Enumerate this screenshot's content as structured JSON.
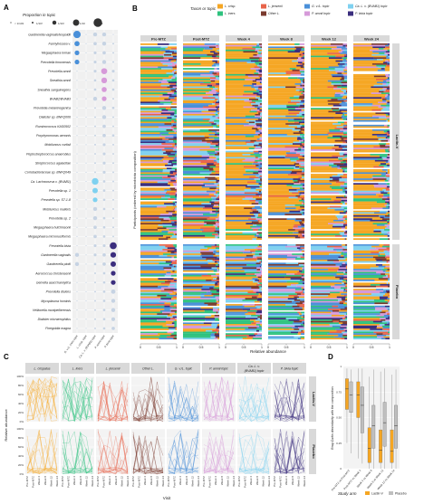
{
  "panels": {
    "a": "A",
    "b": "B",
    "c": "C",
    "d": "D"
  },
  "chart_data": [
    {
      "panel": "A",
      "type": "dot",
      "size_legend": {
        "title": "Proportion in topic",
        "entries": [
          {
            "label": "< 1/103",
            "value": 0.0005
          },
          {
            "label": "1/10³",
            "value": 0.001
          },
          {
            "label": "1/10²",
            "value": 0.01
          },
          {
            "label": "1/10",
            "value": 0.1
          },
          {
            "label": "1",
            "value": 1
          }
        ]
      },
      "topics": [
        "G. v./L. iners topic",
        "L. crisp. topic",
        "Ca. L. v. (BVAB1) topic",
        "P. amnii topic",
        "P. bivia topic"
      ],
      "taxa": [
        "Gardnerella vaginalis/leopoldii",
        "Fannyhessea v.",
        "Megasphaera lornae",
        "Prevotella timonensis",
        "Prevotella amnii",
        "Sneathia amnii",
        "Sneathia sanguinegens",
        "BVAB2/BVAB3",
        "Prevotella melaninogenica",
        "Dialister sp. BNFQ006",
        "Ruminococcus KAS0502",
        "Porphyromonas uenonis",
        "Mobiluncus curtisii",
        "Peptostreptococcus anaerobius",
        "Streptococcus agalactiae",
        "Coriobacteriaceae sp. BNFQ049",
        "Ca. Lachnocurva v. (BVAB1)",
        "Prevotella sp. 1",
        "Prevotella sp. S7-1-8",
        "Mobiluncus mulieris",
        "Prevotella sp. 2",
        "Megasphaera hutchinsonii",
        "Megasphaera micronuciformis",
        "Prevotella bivia",
        "Gardnerella vaginalis",
        "Gardnerella piotii",
        "Aerococcus christensenii",
        "Gemella asaccharolytica",
        "Prevotella disiens",
        "Mycoplasma hominis",
        "Veillonella montpellierensis",
        "Dialister micraerophilus",
        "Finegoldia magna"
      ],
      "values": [
        [
          0.3,
          0.0005,
          0.01,
          0.01,
          0.0005
        ],
        [
          0.03,
          0.0005,
          0.005,
          0.01,
          0.001
        ],
        [
          0.02,
          0.0005,
          0.003,
          0.005,
          0.001
        ],
        [
          0.02,
          0.0005,
          0.003,
          0.01,
          0.001
        ],
        [
          0.0005,
          0.0005,
          0.003,
          0.08,
          0.003
        ],
        [
          0.0005,
          0.0005,
          0.002,
          0.06,
          0.002
        ],
        [
          0.0005,
          0.0005,
          0.002,
          0.03,
          0.002
        ],
        [
          0.0005,
          0.0005,
          0.01,
          0.02,
          0.001
        ],
        [
          0.0005,
          0.0005,
          0.001,
          0.01,
          0.002
        ],
        [
          0.0005,
          0.0005,
          0.001,
          0.01,
          0.001
        ],
        [
          0.0005,
          0.0005,
          0.001,
          0.005,
          0.001
        ],
        [
          0.0005,
          0.0005,
          0.001,
          0.005,
          0.002
        ],
        [
          0.0005,
          0.0005,
          0.001,
          0.003,
          0.001
        ],
        [
          0.0005,
          0.0005,
          0.001,
          0.003,
          0.001
        ],
        [
          0.0005,
          0.0005,
          0.001,
          0.003,
          0.001
        ],
        [
          0.0005,
          0.0005,
          0.001,
          0.003,
          0.001
        ],
        [
          0.0005,
          0.0005,
          0.15,
          0.002,
          0.001
        ],
        [
          0.0005,
          0.0005,
          0.04,
          0.002,
          0.001
        ],
        [
          0.0005,
          0.0005,
          0.02,
          0.002,
          0.001
        ],
        [
          0.0005,
          0.0005,
          0.01,
          0.002,
          0.001
        ],
        [
          0.0005,
          0.0005,
          0.01,
          0.002,
          0.001
        ],
        [
          0.0005,
          0.0005,
          0.005,
          0.002,
          0.001
        ],
        [
          0.0005,
          0.0005,
          0.005,
          0.002,
          0.001
        ],
        [
          0.0005,
          0.0005,
          0.003,
          0.003,
          0.2
        ],
        [
          0.01,
          0.0005,
          0.003,
          0.005,
          0.05
        ],
        [
          0.01,
          0.0005,
          0.002,
          0.005,
          0.04
        ],
        [
          0.0005,
          0.0005,
          0.001,
          0.002,
          0.02
        ],
        [
          0.0005,
          0.0005,
          0.001,
          0.002,
          0.02
        ],
        [
          0.0005,
          0.0005,
          0.001,
          0.002,
          0.015
        ],
        [
          0.0005,
          0.0005,
          0.001,
          0.002,
          0.01
        ],
        [
          0.0005,
          0.0005,
          0.001,
          0.002,
          0.01
        ],
        [
          0.0005,
          0.0005,
          0.001,
          0.002,
          0.008
        ],
        [
          0.0005,
          0.0005,
          0.001,
          0.002,
          0.005
        ]
      ],
      "colors": {
        "neutral": "#c6d3e3",
        "topics": [
          "#4a90d9",
          "#f5a623",
          "#7fd1f0",
          "#d69ad9",
          "#3b2e7e"
        ]
      }
    },
    {
      "panel": "B",
      "type": "stacked_bar",
      "legend_title": "Taxon or topic",
      "legend": [
        {
          "name": "L. crisp.",
          "color": "#f5a623"
        },
        {
          "name": "L. jensenii",
          "color": "#e8644a"
        },
        {
          "name": "G. v./L. topic",
          "color": "#4a90d9"
        },
        {
          "name": "Ca. L. v. (BVAB1) topic",
          "color": "#7fd1f0"
        },
        {
          "name": "L. iners",
          "color": "#2ec27e"
        },
        {
          "name": "Other L.",
          "color": "#7a3a2e"
        },
        {
          "name": "P. amnii topic",
          "color": "#d69ad9"
        },
        {
          "name": "P. bivia topic",
          "color": "#3b2e7e"
        }
      ],
      "visits": [
        "Pre-MTZ",
        "Post-MTZ",
        "Week 4",
        "Week 8",
        "Week 12",
        "Week 24"
      ],
      "arms": [
        "Lactin-V",
        "Placebo"
      ],
      "ylabel": "Participants (ordered by microbiota composition)",
      "xlabel": "Relative abundance",
      "x_ticks": [
        "0",
        "0.5",
        "1"
      ],
      "xlim": [
        0,
        1
      ]
    },
    {
      "panel": "C",
      "type": "line",
      "components": [
        "L. crispatus",
        "L. iners",
        "L. jensenii",
        "Other L.",
        "G. v./L. topic",
        "P. amnii topic",
        "Ca. L. v. (BVAB1) topic",
        "P. bivia topic"
      ],
      "colors": [
        "#f5a623",
        "#2ec27e",
        "#e8644a",
        "#7a3a2e",
        "#4a90d9",
        "#d69ad9",
        "#7fd1f0",
        "#3b2e7e"
      ],
      "arms": [
        "Lactin-V",
        "Placebo"
      ],
      "x": [
        "Pre-MTZ",
        "Post-MTZ",
        "Week 4",
        "Week 8",
        "Week 12",
        "Week 24"
      ],
      "ylabel": "Relative abundance",
      "xlabel": "Visit",
      "y_ticks": [
        "0%",
        "20%",
        "40%",
        "60%",
        "80%",
        "100%"
      ],
      "ylim": [
        0,
        100
      ]
    },
    {
      "panel": "D",
      "type": "box",
      "ylabel": "Bray-Curtis dissimilarity with the composition",
      "xlabel": "",
      "categories": [
        "Pre-MTZ vs Post-MTZ",
        "Post-MTZ vs Week 4",
        "Week 4 vs Week 8",
        "Week 8 vs Week 12",
        "Week 12 vs Week 24"
      ],
      "series": [
        {
          "name": "Lactin-V",
          "color": "#f5a623",
          "boxes": [
            [
              0.25,
              0.58,
              0.78,
              0.88,
              0.98
            ],
            [
              0.1,
              0.5,
              0.72,
              0.85,
              0.98
            ],
            [
              0.0,
              0.06,
              0.2,
              0.4,
              0.9
            ],
            [
              0.0,
              0.06,
              0.18,
              0.38,
              0.95
            ],
            [
              0.0,
              0.06,
              0.17,
              0.38,
              0.92
            ]
          ]
        },
        {
          "name": "Placebo",
          "color": "#bfbfbf",
          "boxes": [
            [
              0.15,
              0.55,
              0.72,
              0.85,
              0.97
            ],
            [
              0.05,
              0.35,
              0.62,
              0.8,
              0.98
            ],
            [
              0.0,
              0.2,
              0.42,
              0.62,
              0.97
            ],
            [
              0.0,
              0.22,
              0.45,
              0.65,
              0.98
            ],
            [
              0.0,
              0.2,
              0.42,
              0.62,
              0.97
            ]
          ]
        }
      ],
      "y_ticks": [
        "0",
        "0.25",
        "0.50",
        "0.75",
        "1"
      ],
      "ylim": [
        0,
        1
      ],
      "legend_title": "Study arm"
    }
  ]
}
